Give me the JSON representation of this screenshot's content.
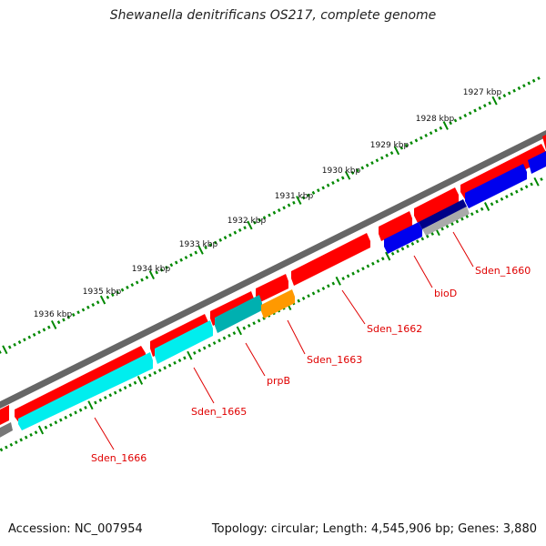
{
  "title": "Shewanella denitrificans OS217, complete genome",
  "footer": {
    "accession": "Accession: NC_007954",
    "summary": "Topology: circular; Length: 4,545,906 bp; Genes: 3,880"
  },
  "ticks": [
    "1927 kbp",
    "1928 kbp",
    "1929 kbp",
    "1930 kbp",
    "1931 kbp",
    "1932 kbp",
    "1933 kbp",
    "1934 kbp",
    "1935 kbp",
    "1936 kbp"
  ],
  "gene_labels": [
    "Sden_1660",
    "bioD",
    "Sden_1662",
    "Sden_1663",
    "prpB",
    "Sden_1665",
    "Sden_1666"
  ],
  "colors": {
    "backbone": "#777777",
    "cds": "#ff0000",
    "blue": "#0000ee",
    "navy": "#000088",
    "cyan": "#00eeee",
    "teal": "#00b0b0",
    "orange": "#ff9900",
    "grey": "#aaaaaa",
    "tick": "#008800",
    "label": "#e00000"
  }
}
